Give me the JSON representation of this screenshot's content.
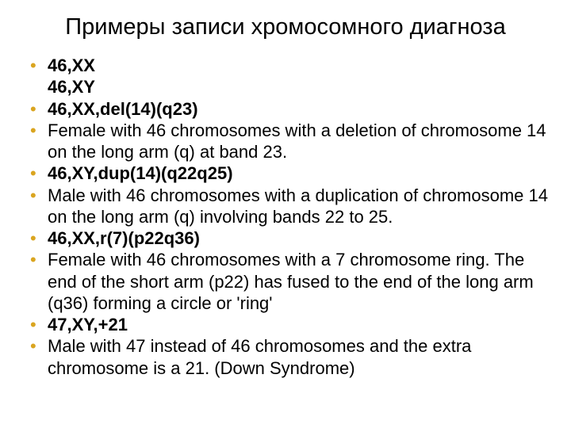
{
  "title": "Примеры записи хромосомного диагноза",
  "title_fontsize": 29,
  "title_color": "#000000",
  "bullet_color": "#daa520",
  "text_color": "#000000",
  "item_fontsize": 22,
  "items": [
    {
      "text": "46,ХХ",
      "bold": true,
      "subtext": "46,ХY"
    },
    {
      "text": "46,XX,del(14)(q23)",
      "bold": true
    },
    {
      "text": "Female with 46 chromosomes with a deletion of chromosome 14 on the long arm (q) at band 23.",
      "bold": false
    },
    {
      "text": "46,XY,dup(14)(q22q25)",
      "bold": true
    },
    {
      "text": "Male with 46 chromosomes with a duplication of chromosome 14 on the long arm (q) involving bands 22 to 25.",
      "bold": false
    },
    {
      "text": "46,XX,r(7)(p22q36)",
      "bold": true
    },
    {
      "text": "Female with 46 chromosomes with a 7 chromosome ring. The end of the short arm (p22) has fused to the end of the long arm (q36) forming a circle or 'ring'",
      "bold": false
    },
    {
      "text": "47,XY,+21",
      "bold": true
    },
    {
      "text": "Male with 47 instead of 46 chromosomes and the extra chromosome is a 21. (Down Syndrome)",
      "bold": false
    }
  ]
}
